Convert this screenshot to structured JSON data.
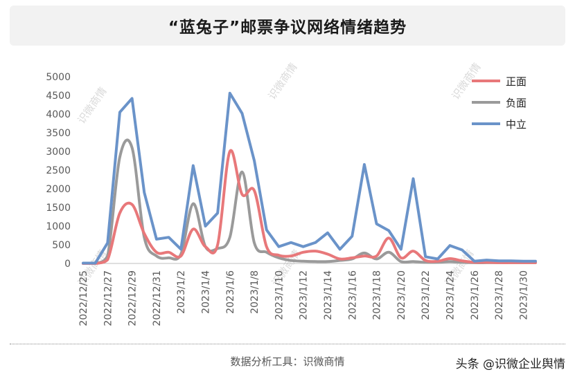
{
  "title": "“蓝兔子”邮票争议网络情绪趋势",
  "footer": {
    "tool_text": "数据分析工具：识微商情",
    "credit": "头条 @识微企业舆情"
  },
  "watermark_text": "识微商情",
  "colors": {
    "positive": "#e8787a",
    "negative": "#9a9a9a",
    "neutral": "#6a93c9",
    "title_bg": "#f2f2f2"
  },
  "chart_data": {
    "type": "line",
    "title": "“蓝兔子”邮票争议网络情绪趋势",
    "ylim": [
      0,
      5000
    ],
    "yticks": [
      0,
      500,
      1000,
      1500,
      2000,
      2500,
      3000,
      3500,
      4000,
      4500,
      5000
    ],
    "legend_position": "top-right",
    "grid": false,
    "x": [
      "2022/12/25",
      "2022/12/26",
      "2022/12/27",
      "2022/12/28",
      "2022/12/29",
      "2022/12/30",
      "2022/12/31",
      "2023/1/1",
      "2023/1/2",
      "2023/1/3",
      "2023/1/4",
      "2023/1/5",
      "2023/1/6",
      "2023/1/7",
      "2023/1/8",
      "2023/1/9",
      "2023/1/10",
      "2023/1/11",
      "2023/1/12",
      "2023/1/13",
      "2023/1/14",
      "2023/1/15",
      "2023/1/16",
      "2023/1/17",
      "2023/1/18",
      "2023/1/19",
      "2023/1/20",
      "2023/1/21",
      "2023/1/22",
      "2023/1/23",
      "2023/1/24",
      "2023/1/25",
      "2023/1/26",
      "2023/1/27",
      "2023/1/28",
      "2023/1/29",
      "2023/1/30",
      "2023/1/31"
    ],
    "tick_labels": [
      "2022/12/25",
      "2022/12/27",
      "2022/12/29",
      "2022/12/31",
      "2023/1/2",
      "2023/1/4",
      "2023/1/6",
      "2023/1/8",
      "2023/1/10",
      "2023/1/12",
      "2023/1/14",
      "2023/1/16",
      "2023/1/18",
      "2023/1/20",
      "2023/1/22",
      "2023/1/24",
      "2023/1/26",
      "2023/1/28",
      "2023/1/30"
    ],
    "series": [
      {
        "name": "正面",
        "color": "#e8787a",
        "values": [
          0,
          0,
          100,
          1350,
          1580,
          800,
          300,
          300,
          200,
          920,
          450,
          500,
          3000,
          1850,
          1950,
          450,
          220,
          200,
          300,
          330,
          250,
          120,
          150,
          200,
          200,
          680,
          150,
          330,
          80,
          60,
          130,
          70,
          30,
          30,
          20,
          20,
          20,
          20
        ]
      },
      {
        "name": "负面",
        "color": "#9a9a9a",
        "values": [
          0,
          0,
          200,
          2850,
          3100,
          700,
          200,
          150,
          250,
          1600,
          450,
          400,
          700,
          2450,
          550,
          300,
          150,
          80,
          60,
          50,
          50,
          80,
          120,
          280,
          120,
          300,
          50,
          50,
          30,
          30,
          50,
          30,
          20,
          20,
          20,
          20,
          20,
          20
        ]
      },
      {
        "name": "中立",
        "color": "#6a93c9",
        "values": [
          10,
          10,
          550,
          4050,
          4420,
          1900,
          650,
          700,
          380,
          2620,
          1000,
          1350,
          4560,
          4020,
          2750,
          900,
          450,
          560,
          450,
          560,
          820,
          380,
          730,
          2650,
          1060,
          880,
          380,
          2270,
          180,
          120,
          480,
          360,
          60,
          90,
          70,
          70,
          60,
          60
        ]
      }
    ]
  }
}
